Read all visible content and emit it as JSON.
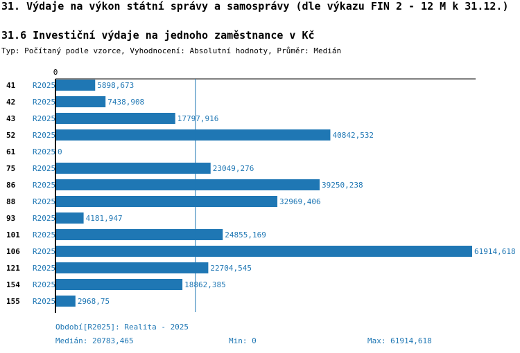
{
  "page": {
    "title": "31. Výdaje na výkon státní správy a samosprávy (dle výkazu FIN 2 - 12 M k 31.12.)",
    "subtitle": "31.6 Investiční výdaje na jednoho zaměstnance v Kč",
    "type_line": "Typ: Počítaný podle vzorce, Vyhodnocení: Absolutní hodnoty, Průměr: Medián"
  },
  "colors": {
    "bar": "#1f77b4",
    "text_blue": "#1f77b4",
    "axis": "#000000"
  },
  "chart_data": {
    "type": "bar",
    "orientation": "horizontal",
    "categories": [
      "41",
      "42",
      "43",
      "52",
      "61",
      "75",
      "86",
      "88",
      "93",
      "101",
      "106",
      "121",
      "154",
      "155"
    ],
    "series": [
      {
        "name": "R2025",
        "values": [
          5898.673,
          7438.908,
          17797.916,
          40842.532,
          0,
          23049.276,
          39250.238,
          32969.406,
          4181.947,
          24855.169,
          61914.618,
          22704.545,
          18862.385,
          2968.75
        ],
        "value_labels": [
          "5898,673",
          "7438,908",
          "17797,916",
          "40842,532",
          "0",
          "23049,276",
          "39250,238",
          "32969,406",
          "4181,947",
          "24855,169",
          "61914,618",
          "22704,545",
          "18862,385",
          "2968,75"
        ]
      }
    ],
    "x_tick_label": "0",
    "xlim": [
      0,
      61914.618
    ],
    "median_line": 20783.465,
    "grid": false
  },
  "footer": {
    "period": "Období[R2025]: Realita - 2025",
    "median": "Medián: 20783,465",
    "min": "Min: 0",
    "max": "Max: 61914,618"
  }
}
